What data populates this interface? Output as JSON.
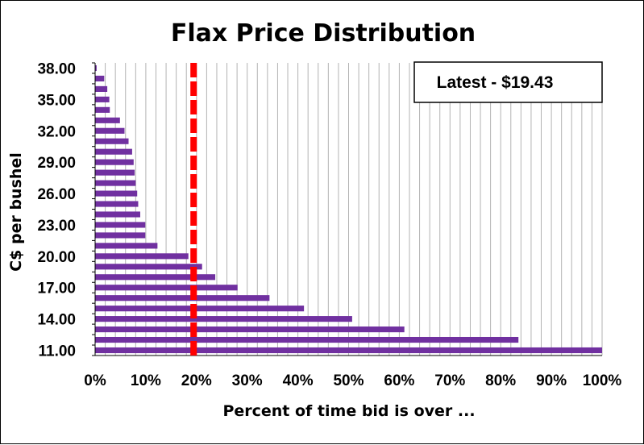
{
  "chart_data": {
    "type": "bar",
    "orientation": "horizontal",
    "title": "Flax Price Distribution",
    "xlabel": "Percent of time bid is over ...",
    "ylabel": "C$ per bushel",
    "xlim": [
      0,
      100
    ],
    "ylim": [
      11,
      38
    ],
    "x_ticks": [
      "0%",
      "10%",
      "20%",
      "30%",
      "40%",
      "50%",
      "60%",
      "70%",
      "80%",
      "90%",
      "100%"
    ],
    "y_ticks": [
      "11.00",
      "14.00",
      "17.00",
      "20.00",
      "23.00",
      "26.00",
      "29.00",
      "32.00",
      "35.00",
      "38.00"
    ],
    "categories": [
      11,
      12,
      13,
      14,
      15,
      16,
      17,
      18,
      19,
      20,
      21,
      22,
      23,
      24,
      25,
      26,
      27,
      28,
      29,
      30,
      31,
      32,
      33,
      34,
      35,
      36,
      37,
      38
    ],
    "values": [
      100,
      83.5,
      61,
      50.7,
      41.2,
      34.4,
      28.1,
      23.7,
      21.1,
      18.4,
      12.3,
      9.9,
      9.9,
      8.9,
      8.5,
      8.3,
      8.0,
      7.8,
      7.6,
      7.3,
      6.6,
      5.8,
      4.9,
      2.9,
      2.8,
      2.4,
      1.8,
      0.3
    ],
    "bar_color": "#7030a0",
    "grid": "vertical",
    "reference_line": {
      "x": 19.43,
      "color": "#ff0000",
      "style": "dashed"
    },
    "annotation": {
      "text": "Latest - $19.43",
      "position": "top-right"
    }
  }
}
